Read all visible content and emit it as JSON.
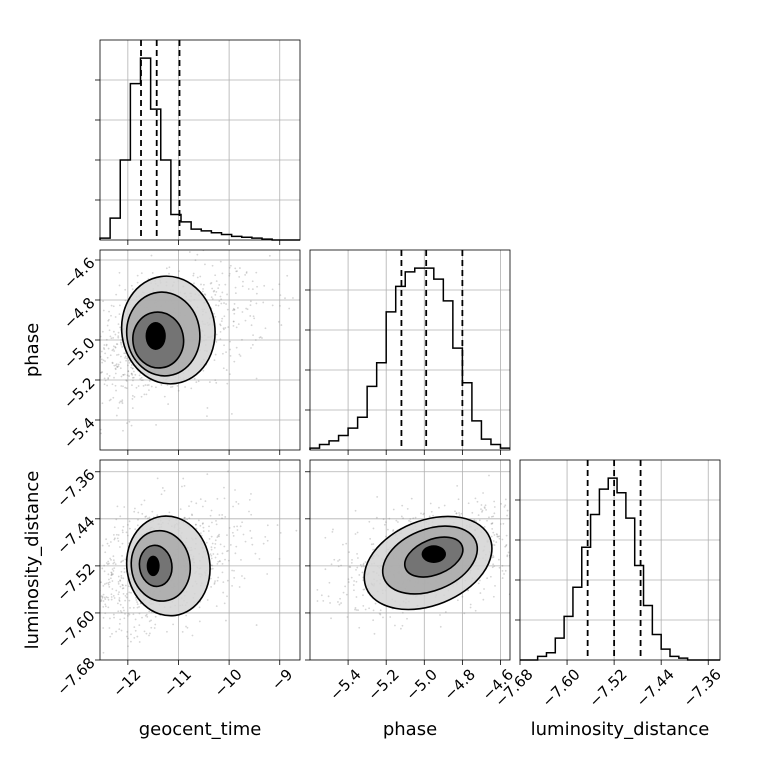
{
  "chart_data": {
    "type": "corner",
    "parameters": [
      "geocent_time",
      "phase",
      "luminosity_distance"
    ],
    "axis_labels": {
      "geocent_time": "geocent_time",
      "phase": "phase",
      "luminosity_distance": "luminosity_distance"
    },
    "grid": true,
    "quantile_lines": "dashed",
    "marginals": [
      {
        "parameter": "geocent_time",
        "range": [
          -12.55,
          -8.6
        ],
        "ticks": [
          -12,
          -11,
          -10,
          -9
        ],
        "tick_labels": [
          "−12",
          "−11",
          "−10",
          "−9"
        ],
        "quantiles": [
          -11.74,
          -11.43,
          -10.98
        ],
        "bin_edges": [
          -12.55,
          -12.35,
          -12.15,
          -11.95,
          -11.75,
          -11.55,
          -11.35,
          -11.15,
          -10.95,
          -10.75,
          -10.55,
          -10.35,
          -10.15,
          -9.95,
          -9.75,
          -9.55,
          -9.35,
          -9.15,
          -8.95,
          -8.75,
          -8.6
        ],
        "counts": [
          0.01,
          0.12,
          0.44,
          0.86,
          1.0,
          0.72,
          0.44,
          0.14,
          0.1,
          0.06,
          0.05,
          0.04,
          0.03,
          0.02,
          0.015,
          0.01,
          0.005,
          0,
          0,
          0
        ]
      },
      {
        "parameter": "phase",
        "range": [
          -5.6,
          -4.55
        ],
        "ticks": [
          -5.4,
          -5.2,
          -5.0,
          -4.8,
          -4.6
        ],
        "tick_labels": [
          "−5.4",
          "−5.2",
          "−5.0",
          "−4.8",
          "−4.6"
        ],
        "quantiles": [
          -5.12,
          -4.99,
          -4.8
        ],
        "bin_edges": [
          -5.6,
          -5.55,
          -5.5,
          -5.45,
          -5.4,
          -5.35,
          -5.3,
          -5.25,
          -5.2,
          -5.15,
          -5.1,
          -5.05,
          -5.0,
          -4.95,
          -4.9,
          -4.85,
          -4.8,
          -4.75,
          -4.7,
          -4.65,
          -4.6,
          -4.55
        ],
        "counts": [
          0.01,
          0.03,
          0.05,
          0.08,
          0.12,
          0.18,
          0.35,
          0.48,
          0.76,
          0.9,
          0.98,
          1.0,
          1.0,
          0.94,
          0.82,
          0.56,
          0.37,
          0.16,
          0.06,
          0.03,
          0.01
        ]
      },
      {
        "parameter": "luminosity_distance",
        "range": [
          -7.68,
          -7.34
        ],
        "ticks": [
          -7.68,
          -7.6,
          -7.52,
          -7.44,
          -7.36
        ],
        "tick_labels": [
          "−7.68",
          "−7.60",
          "−7.52",
          "−7.44",
          "−7.36"
        ],
        "quantiles": [
          -7.565,
          -7.52,
          -7.475
        ],
        "bin_edges": [
          -7.68,
          -7.665,
          -7.65,
          -7.635,
          -7.62,
          -7.605,
          -7.59,
          -7.575,
          -7.56,
          -7.545,
          -7.53,
          -7.515,
          -7.5,
          -7.485,
          -7.47,
          -7.455,
          -7.44,
          -7.425,
          -7.41,
          -7.395,
          -7.38,
          -7.365,
          -7.35,
          -7.34
        ],
        "counts": [
          0,
          0,
          0.02,
          0.04,
          0.12,
          0.24,
          0.4,
          0.62,
          0.8,
          0.94,
          1.0,
          0.92,
          0.78,
          0.52,
          0.3,
          0.14,
          0.06,
          0.02,
          0.01,
          0,
          0,
          0,
          0
        ]
      }
    ],
    "joint": [
      {
        "x": "geocent_time",
        "y": "phase",
        "xrange": [
          -12.55,
          -8.6
        ],
        "yrange": [
          -5.55,
          -4.55
        ],
        "y_ticks": [
          -5.4,
          -5.2,
          -5.0,
          -4.8,
          -4.6
        ],
        "y_tick_labels": [
          "−5.4",
          "−5.2",
          "−5.0",
          "−4.8",
          "−4.6"
        ],
        "peak": [
          -11.45,
          -4.98
        ],
        "contour_levels": [
          {
            "center": [
              -11.4,
              -5.0
            ],
            "half_widths": [
              0.5,
              0.14
            ]
          },
          {
            "center": [
              -11.3,
              -4.97
            ],
            "half_widths": [
              0.72,
              0.21
            ]
          },
          {
            "center": [
              -11.2,
              -4.95
            ],
            "half_widths": [
              0.92,
              0.27
            ]
          }
        ]
      },
      {
        "x": "geocent_time",
        "y": "luminosity_distance",
        "xrange": [
          -12.55,
          -8.6
        ],
        "yrange": [
          -7.68,
          -7.34
        ],
        "y_ticks": [
          -7.68,
          -7.6,
          -7.52,
          -7.44,
          -7.36
        ],
        "y_tick_labels": [
          "−7.68",
          "−7.60",
          "−7.52",
          "−7.44",
          "−7.36"
        ],
        "peak": [
          -11.5,
          -7.52
        ],
        "contour_levels": [
          {
            "center": [
              -11.45,
              -7.52
            ],
            "half_widths": [
              0.32,
              0.035
            ]
          },
          {
            "center": [
              -11.35,
              -7.52
            ],
            "half_widths": [
              0.58,
              0.06
            ]
          },
          {
            "center": [
              -11.2,
              -7.52
            ],
            "half_widths": [
              0.82,
              0.085
            ]
          }
        ]
      },
      {
        "x": "phase",
        "y": "luminosity_distance",
        "xrange": [
          -5.6,
          -4.55
        ],
        "yrange": [
          -7.68,
          -7.34
        ],
        "peak": [
          -4.95,
          -7.5
        ],
        "contour_levels": [
          {
            "center": [
              -4.95,
              -7.505
            ],
            "half_widths": [
              0.16,
              0.03
            ]
          },
          {
            "center": [
              -4.97,
              -7.51
            ],
            "half_widths": [
              0.26,
              0.052
            ]
          },
          {
            "center": [
              -4.98,
              -7.515
            ],
            "half_widths": [
              0.35,
              0.072
            ]
          }
        ]
      }
    ]
  }
}
